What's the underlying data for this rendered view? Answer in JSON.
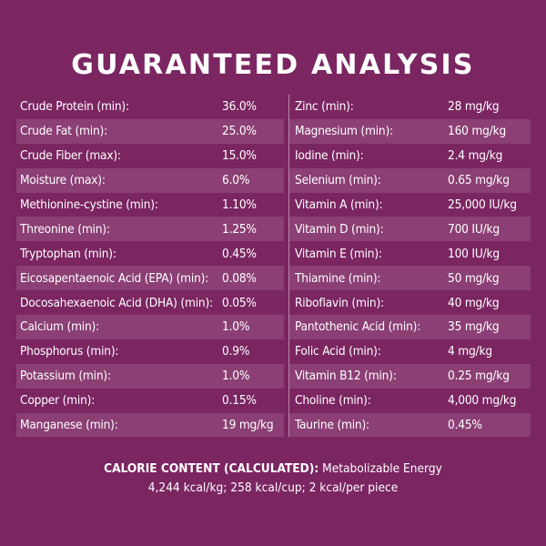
{
  "title": "GUARANTEED ANALYSIS",
  "left_rows": [
    {
      "label": "Crude Protein (min):",
      "value": "36.0%"
    },
    {
      "label": "Crude Fat (min):",
      "value": "25.0%"
    },
    {
      "label": "Crude Fiber (max):",
      "value": "15.0%"
    },
    {
      "label": "Moisture (max):",
      "value": "6.0%"
    },
    {
      "label": "Methionine-cystine (min):",
      "value": "1.10%"
    },
    {
      "label": "Threonine (min):",
      "value": "1.25%"
    },
    {
      "label": "Tryptophan (min):",
      "value": "0.45%"
    },
    {
      "label": "Eicosapentaenoic Acid (EPA) (min):",
      "value": "0.08%"
    },
    {
      "label": "Docosahexaenoic Acid (DHA) (min):",
      "value": "0.05%"
    },
    {
      "label": "Calcium (min):",
      "value": "1.0%"
    },
    {
      "label": "Phosphorus (min):",
      "value": "0.9%"
    },
    {
      "label": "Potassium (min):",
      "value": "1.0%"
    },
    {
      "label": "Copper (min):",
      "value": "0.15%"
    },
    {
      "label": "Manganese (min):",
      "value": "19 mg/kg"
    }
  ],
  "right_rows": [
    {
      "label": "Zinc (min):",
      "value": "28 mg/kg"
    },
    {
      "label": "Magnesium (min):",
      "value": "160 mg/kg"
    },
    {
      "label": "Iodine (min):",
      "value": "2.4 mg/kg"
    },
    {
      "label": "Selenium  (min):",
      "value": "0.65 mg/kg"
    },
    {
      "label": "Vitamin A (min):",
      "value": "25,000 IU/kg"
    },
    {
      "label": "Vitamin D (min):",
      "value": "700 IU/kg"
    },
    {
      "label": "Vitamin E (min):",
      "value": "100 IU/kg"
    },
    {
      "label": "Thiamine (min):",
      "value": "50 mg/kg"
    },
    {
      "label": "Riboflavin (min):",
      "value": "40 mg/kg"
    },
    {
      "label": "Pantothenic Acid (min):",
      "value": "35 mg/kg"
    },
    {
      "label": "Folic Acid (min):",
      "value": "4 mg/kg"
    },
    {
      "label": "Vitamin B12 (min):",
      "value": "0.25 mg/kg"
    },
    {
      "label": "Choline (min):",
      "value": "4,000 mg/kg"
    },
    {
      "label": "Taurine (min):",
      "value": "0.45%"
    }
  ],
  "calorie": {
    "heading": "CALORIE CONTENT (CALCULATED):",
    "line1_rest": "Metabolizable Energy",
    "line2": "4,244 kcal/kg; 258 kcal/cup; 2 kcal/per piece"
  }
}
